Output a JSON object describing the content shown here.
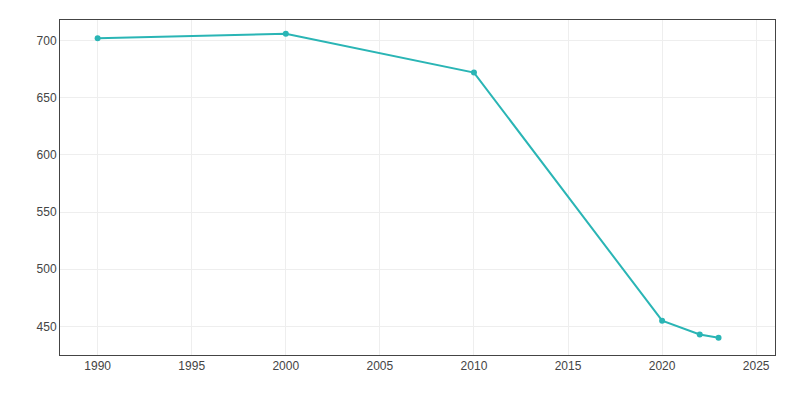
{
  "chart_data": {
    "type": "line",
    "x": [
      1990,
      2000,
      2010,
      2020,
      2022,
      2023
    ],
    "values": [
      702,
      706,
      672,
      455,
      443,
      440
    ],
    "color": "#2ab5b5",
    "marker": "circle",
    "xlim": [
      1988,
      2026
    ],
    "ylim": [
      425,
      718
    ],
    "xticks": [
      1990,
      1995,
      2000,
      2005,
      2010,
      2015,
      2020,
      2025
    ],
    "yticks": [
      450,
      500,
      550,
      600,
      650,
      700
    ],
    "grid": true
  }
}
